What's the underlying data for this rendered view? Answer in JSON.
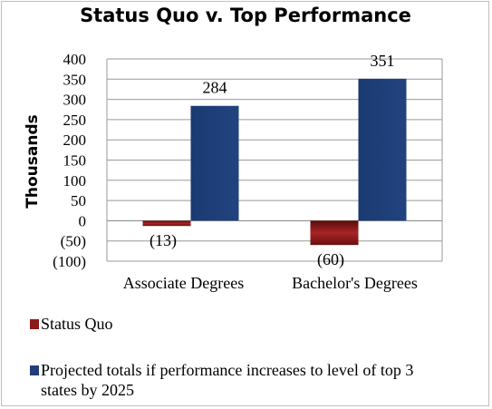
{
  "chart_data": {
    "type": "bar",
    "title": "Status Quo v. Top Performance",
    "ylabel": "Thousands",
    "xlabel": "",
    "ylim": [
      -100,
      400
    ],
    "yticks": [
      400,
      350,
      300,
      250,
      200,
      150,
      100,
      50,
      0,
      -50,
      -100
    ],
    "ytick_labels": [
      "400",
      "350",
      "300",
      "250",
      "200",
      "150",
      "100",
      "50",
      "0",
      "(50)",
      "(100)"
    ],
    "categories": [
      "Associate Degrees",
      "Bachelor's Degrees"
    ],
    "series": [
      {
        "name": "Status Quo",
        "values": [
          -13,
          -60
        ],
        "labels": [
          "(13)",
          "(60)"
        ],
        "color": "#8b1a1a"
      },
      {
        "name": "Projected totals if performance increases to level of top 3 states by 2025",
        "legend_lines": [
          "Projected totals if performance increases to level of top 3",
          "states by 2025"
        ],
        "values": [
          284,
          351
        ],
        "labels": [
          "284",
          "351"
        ],
        "color": "#1f3f7a"
      }
    ],
    "grid": "horizontal",
    "legend_position": "bottom"
  }
}
